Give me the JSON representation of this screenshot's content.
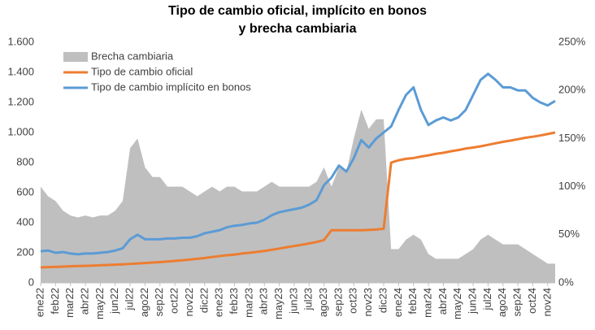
{
  "chart_data": {
    "type": "combo",
    "title": [
      "Tipo de cambio oficial, implícito en bonos",
      "y brecha cambiaria"
    ],
    "categories": [
      "ene22",
      null,
      "feb22",
      null,
      "mar22",
      null,
      "abr22",
      null,
      "may22",
      null,
      "jun22",
      null,
      "jul22",
      null,
      "ago22",
      null,
      "sep22",
      null,
      "oct22",
      null,
      "nov22",
      null,
      "dic22",
      null,
      "ene23",
      null,
      "feb23",
      null,
      "mar23",
      null,
      "abr23",
      null,
      "may23",
      null,
      "jun23",
      null,
      "jul23",
      null,
      "ago23",
      null,
      "sep23",
      null,
      "oct23",
      null,
      "nov23",
      null,
      "dic23",
      null,
      "ene24",
      null,
      "feb24",
      null,
      "mar24",
      null,
      "abr24",
      null,
      "may24",
      null,
      "jun24",
      null,
      "jul24",
      null,
      "ago24",
      null,
      "sep24",
      null,
      "oct24",
      null,
      "nov24",
      null
    ],
    "series": [
      {
        "name": "Brecha cambiaria",
        "kind": "area",
        "axis": "y2",
        "color": "#bfbfbf",
        "values": [
          100,
          90,
          85,
          75,
          70,
          68,
          70,
          68,
          70,
          70,
          75,
          85,
          140,
          150,
          120,
          110,
          110,
          100,
          100,
          100,
          95,
          90,
          95,
          100,
          95,
          100,
          100,
          95,
          95,
          95,
          100,
          105,
          100,
          100,
          100,
          100,
          100,
          105,
          120,
          100,
          120,
          115,
          150,
          180,
          160,
          170,
          170,
          35,
          35,
          45,
          50,
          45,
          30,
          25,
          25,
          25,
          25,
          30,
          35,
          45,
          50,
          45,
          40,
          40,
          40,
          35,
          30,
          25,
          20,
          20
        ]
      },
      {
        "name": "Tipo de cambio oficial",
        "kind": "line",
        "color": "#ed7d31",
        "values": [
          103,
          105,
          106,
          108,
          110,
          112,
          113,
          115,
          117,
          119,
          121,
          123,
          126,
          129,
          132,
          135,
          138,
          142,
          146,
          150,
          155,
          160,
          165,
          172,
          178,
          184,
          188,
          195,
          200,
          206,
          212,
          220,
          228,
          237,
          245,
          253,
          262,
          272,
          285,
          350,
          350,
          350,
          350,
          350,
          352,
          355,
          360,
          800,
          815,
          825,
          830,
          840,
          848,
          858,
          865,
          875,
          883,
          893,
          900,
          908,
          918,
          928,
          938,
          946,
          955,
          965,
          972,
          980,
          990,
          1000
        ]
      },
      {
        "name": "Tipo de cambio implícito en bonos",
        "kind": "line",
        "color": "#5b9bd5",
        "values": [
          210,
          215,
          200,
          205,
          195,
          190,
          195,
          195,
          200,
          205,
          215,
          230,
          290,
          320,
          290,
          290,
          290,
          295,
          295,
          300,
          300,
          310,
          330,
          340,
          350,
          370,
          380,
          385,
          395,
          400,
          420,
          450,
          470,
          480,
          490,
          500,
          520,
          550,
          650,
          700,
          780,
          740,
          830,
          950,
          900,
          960,
          1000,
          1040,
          1150,
          1250,
          1300,
          1150,
          1050,
          1080,
          1100,
          1080,
          1100,
          1150,
          1250,
          1350,
          1390,
          1350,
          1300,
          1300,
          1280,
          1280,
          1230,
          1200,
          1180,
          1210
        ]
      }
    ],
    "ylim": [
      0,
      1600
    ],
    "yticks": [
      0,
      200,
      400,
      600,
      800,
      {
        "value": 1000,
        "label": "1.000"
      },
      {
        "value": 1200,
        "label": "1.200"
      },
      {
        "value": 1400,
        "label": "1.400"
      },
      {
        "value": 1600,
        "label": "1.600"
      }
    ],
    "y2lim": [
      0,
      250
    ],
    "y2ticks": [
      {
        "value": 0,
        "label": "0%"
      },
      {
        "value": 50,
        "label": "50%"
      },
      {
        "value": 100,
        "label": "100%"
      },
      {
        "value": 150,
        "label": "150%"
      },
      {
        "value": 200,
        "label": "200%"
      },
      {
        "value": 250,
        "label": "250%"
      }
    ],
    "legend": "top-left"
  }
}
